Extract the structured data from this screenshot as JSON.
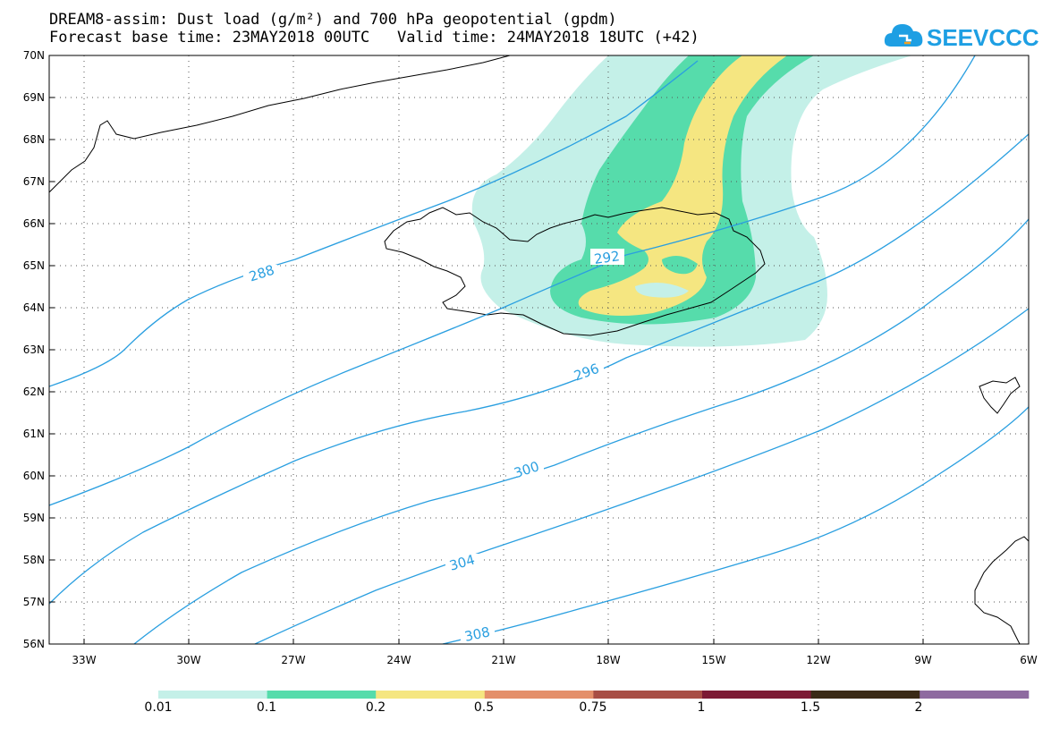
{
  "header": {
    "line1": "DREAM8-assim: Dust load (g/m²) and 700 hPa geopotential (gpdm)",
    "line2_left": "Forecast base time: 23MAY2018 00UTC",
    "line2_right": "Valid time: 24MAY2018 18UTC (+42)"
  },
  "logo": {
    "text": "SEEVCCC",
    "icon": "cloud-icon",
    "color": "#1e9fe3"
  },
  "map": {
    "lat_labels": [
      "70N",
      "69N",
      "68N",
      "67N",
      "66N",
      "65N",
      "64N",
      "63N",
      "62N",
      "61N",
      "60N",
      "59N",
      "58N",
      "57N",
      "56N"
    ],
    "lon_labels": [
      "33W",
      "30W",
      "27W",
      "24W",
      "21W",
      "18W",
      "15W",
      "12W",
      "9W",
      "6W"
    ],
    "lat_range": [
      56,
      70
    ],
    "lon_range": [
      -34.3,
      -6
    ],
    "gridlines": "dotted",
    "contour_color": "#2a9fe0",
    "contour_labels": [
      "288",
      "292",
      "296",
      "300",
      "304",
      "308"
    ]
  },
  "legend": {
    "labels": [
      "0.01",
      "0.1",
      "0.2",
      "0.5",
      "0.75",
      "1",
      "1.5",
      "2"
    ],
    "colors": [
      "#c4f0e8",
      "#56dcab",
      "#f5e681",
      "#e48f6a",
      "#a84e45",
      "#7c1a34",
      "#3a2a16",
      "#8e6aa0"
    ]
  }
}
